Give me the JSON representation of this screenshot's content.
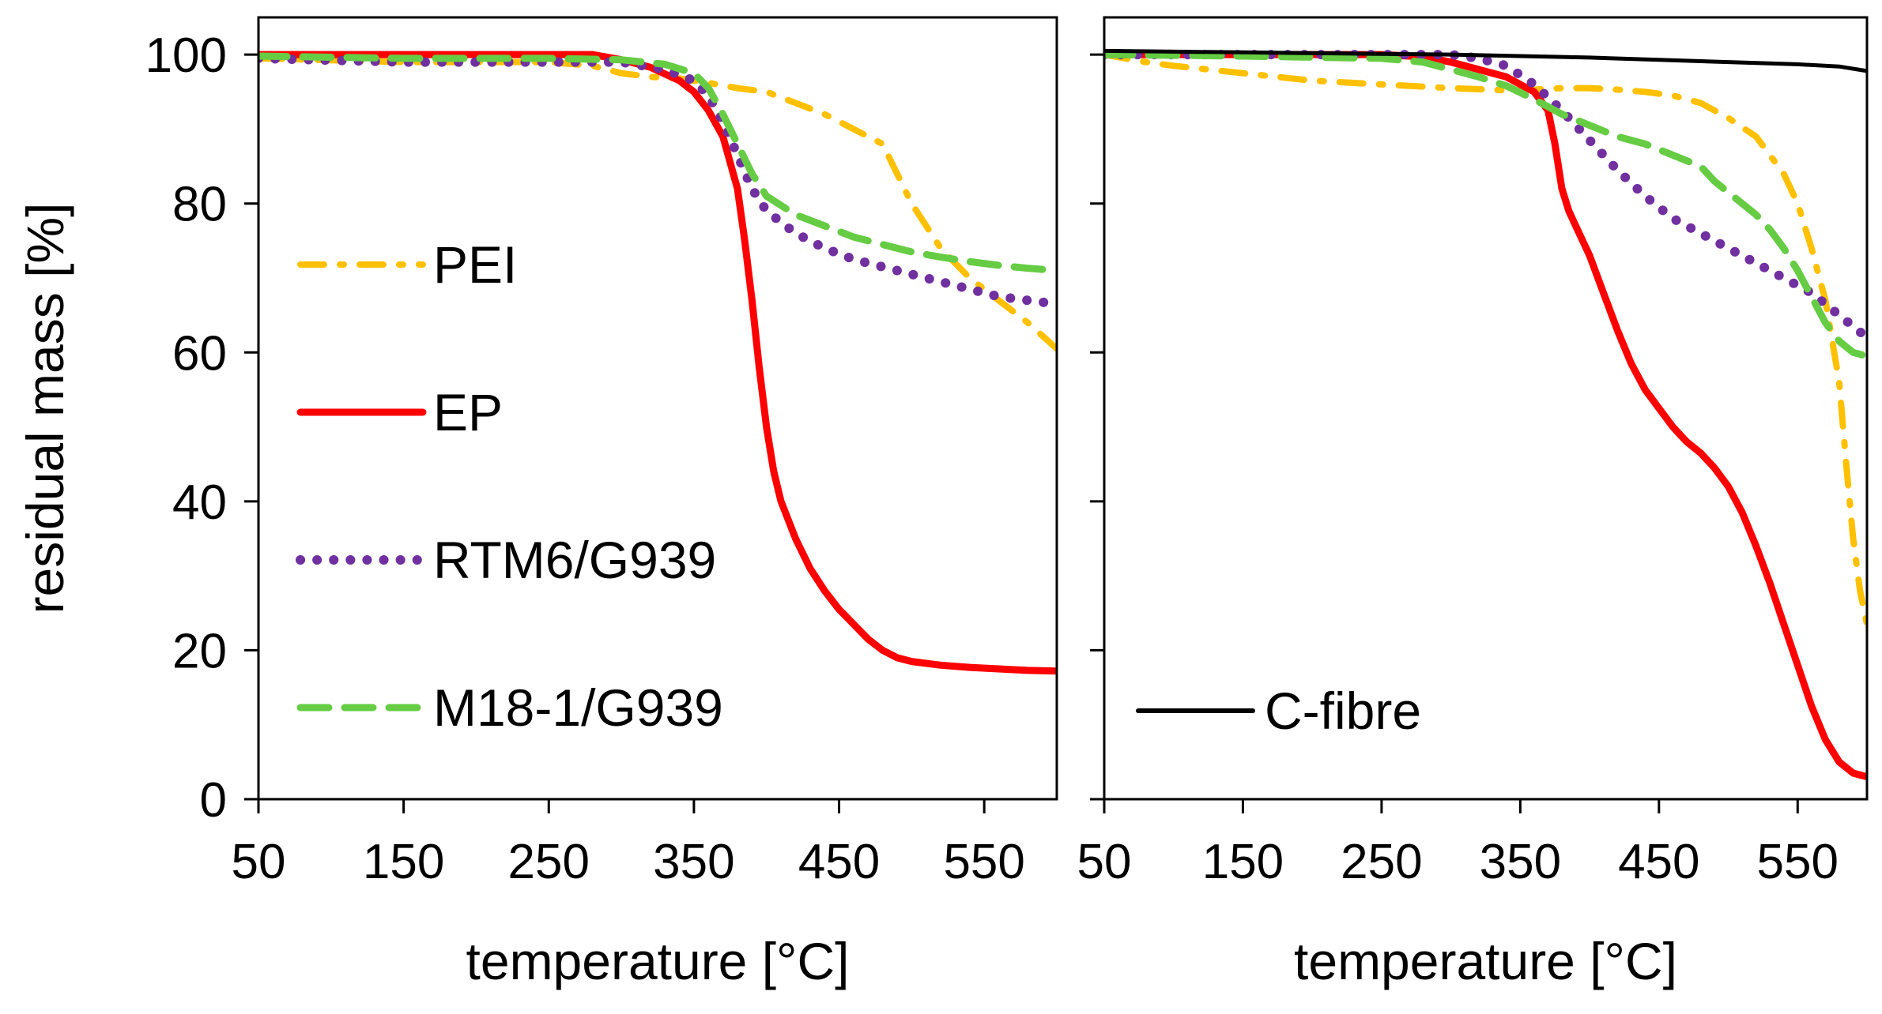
{
  "chart_data": [
    {
      "type": "line",
      "panel": "left",
      "xlabel": "temperature [°C]",
      "ylabel": "residual mass [%]",
      "xlim": [
        50,
        600
      ],
      "ylim": [
        0,
        105
      ],
      "xticks": [
        50,
        150,
        250,
        350,
        450,
        550
      ],
      "yticks": [
        0,
        20,
        40,
        60,
        80,
        100
      ],
      "legend_position": "left",
      "series": [
        {
          "name": "PEI",
          "color": "#FFC000",
          "style": "dashdot",
          "x": [
            50,
            150,
            250,
            280,
            300,
            320,
            340,
            360,
            380,
            400,
            420,
            440,
            460,
            480,
            500,
            520,
            540,
            560,
            580,
            600
          ],
          "y": [
            99.5,
            99,
            99,
            98.5,
            97.5,
            97,
            96.8,
            96.2,
            95.5,
            95,
            93.5,
            92,
            90,
            88,
            80,
            74,
            70,
            67,
            64,
            60.5
          ]
        },
        {
          "name": "EP",
          "color": "#FF0000",
          "style": "solid",
          "x": [
            50,
            100,
            150,
            200,
            250,
            280,
            300,
            320,
            340,
            350,
            360,
            370,
            380,
            385,
            390,
            395,
            400,
            405,
            410,
            420,
            430,
            440,
            450,
            460,
            470,
            480,
            490,
            500,
            520,
            540,
            560,
            580,
            600
          ],
          "y": [
            100,
            100,
            100,
            100,
            100,
            100,
            99.3,
            98.3,
            96.5,
            95,
            92.5,
            89,
            82,
            75,
            67,
            58,
            50,
            44,
            40,
            35,
            31,
            28,
            25.5,
            23.5,
            21.5,
            20,
            19,
            18.5,
            18,
            17.7,
            17.5,
            17.3,
            17.2
          ]
        },
        {
          "name": "RTM6/G939",
          "color": "#7030A0",
          "style": "dotted",
          "x": [
            50,
            150,
            250,
            300,
            330,
            350,
            360,
            370,
            380,
            390,
            400,
            420,
            440,
            460,
            480,
            500,
            520,
            540,
            560,
            580,
            600
          ],
          "y": [
            99.5,
            99,
            99,
            99,
            98,
            96.5,
            94.5,
            91,
            86.5,
            82,
            79,
            76,
            74,
            72.5,
            71.5,
            70.5,
            69.5,
            68.5,
            67.5,
            67,
            66.5
          ]
        },
        {
          "name": "M18-1/G939",
          "color": "#66CC44",
          "style": "dashed",
          "x": [
            50,
            150,
            250,
            300,
            330,
            350,
            360,
            370,
            380,
            390,
            400,
            420,
            440,
            460,
            480,
            500,
            520,
            540,
            560,
            580,
            600
          ],
          "y": [
            99.8,
            99.5,
            99.5,
            99.3,
            98.7,
            97.5,
            95.5,
            92,
            88,
            84,
            81,
            78.5,
            77,
            75.5,
            74.5,
            73.5,
            72.8,
            72.2,
            71.7,
            71.3,
            71
          ]
        }
      ],
      "legend": [
        "PEI",
        "EP",
        "RTM6/G939",
        "M18-1/G939"
      ]
    },
    {
      "type": "line",
      "panel": "right",
      "xlabel": "temperature [°C]",
      "ylabel": "",
      "xlim": [
        50,
        600
      ],
      "ylim": [
        0,
        105
      ],
      "xticks": [
        50,
        150,
        250,
        350,
        450,
        550
      ],
      "yticks": [
        0,
        20,
        40,
        60,
        80,
        100
      ],
      "legend_position": "bottom-left",
      "series": [
        {
          "name": "PEI",
          "color": "#FFC000",
          "style": "dashdot",
          "x": [
            50,
            80,
            100,
            150,
            200,
            250,
            300,
            340,
            350,
            360,
            380,
            400,
            420,
            440,
            460,
            480,
            500,
            520,
            540,
            550,
            560,
            570,
            580,
            585,
            590,
            595,
            600
          ],
          "y": [
            100,
            99,
            98.5,
            97.5,
            96.5,
            96,
            95.5,
            95.2,
            95.2,
            95.3,
            95.5,
            95.5,
            95.3,
            95,
            94.5,
            93.5,
            91.5,
            89,
            84,
            80,
            74,
            67,
            56,
            45,
            35,
            28,
            23.5
          ]
        },
        {
          "name": "EP",
          "color": "#FF0000",
          "style": "solid",
          "x": [
            50,
            100,
            150,
            200,
            250,
            280,
            300,
            320,
            340,
            360,
            370,
            375,
            380,
            385,
            390,
            395,
            400,
            410,
            420,
            430,
            440,
            450,
            460,
            470,
            480,
            490,
            500,
            510,
            520,
            530,
            540,
            550,
            560,
            570,
            580,
            590,
            600
          ],
          "y": [
            100,
            100,
            100,
            100,
            100,
            99.7,
            99,
            98,
            97,
            95,
            92.5,
            88,
            82,
            79,
            77,
            75,
            73,
            68,
            63,
            58.5,
            55,
            52.5,
            50,
            48,
            46.5,
            44.5,
            42,
            38.5,
            34,
            29,
            23.5,
            18,
            12.5,
            8,
            5,
            3.5,
            3
          ]
        },
        {
          "name": "RTM6/G939",
          "color": "#7030A0",
          "style": "dotted",
          "x": [
            50,
            150,
            250,
            300,
            320,
            340,
            360,
            380,
            400,
            420,
            440,
            460,
            480,
            500,
            520,
            540,
            560,
            580,
            600
          ],
          "y": [
            100,
            100,
            100,
            100,
            99.5,
            98.5,
            96,
            92.5,
            88.5,
            84.5,
            81,
            78,
            76,
            74,
            72,
            70,
            68,
            65,
            62
          ]
        },
        {
          "name": "M18-1/G939",
          "color": "#66CC44",
          "style": "dashed",
          "x": [
            50,
            150,
            250,
            280,
            300,
            320,
            340,
            360,
            380,
            400,
            420,
            440,
            460,
            480,
            490,
            500,
            510,
            520,
            530,
            540,
            550,
            560,
            570,
            580,
            590,
            600
          ],
          "y": [
            100,
            99.8,
            99.5,
            99,
            98,
            97,
            95.8,
            94,
            92,
            90.5,
            89,
            88,
            86.5,
            85,
            83,
            81.5,
            80,
            78.5,
            76.5,
            74,
            71,
            67.5,
            64,
            61.5,
            60,
            59.5
          ]
        },
        {
          "name": "C-fibre",
          "color": "#000000",
          "style": "solid",
          "x": [
            50,
            100,
            150,
            200,
            250,
            300,
            350,
            400,
            450,
            500,
            550,
            580,
            600
          ],
          "y": [
            100.5,
            100.4,
            100.3,
            100.2,
            100.1,
            100,
            99.8,
            99.6,
            99.3,
            99,
            98.7,
            98.4,
            97.8
          ]
        }
      ],
      "legend": [
        "C-fibre"
      ]
    }
  ]
}
